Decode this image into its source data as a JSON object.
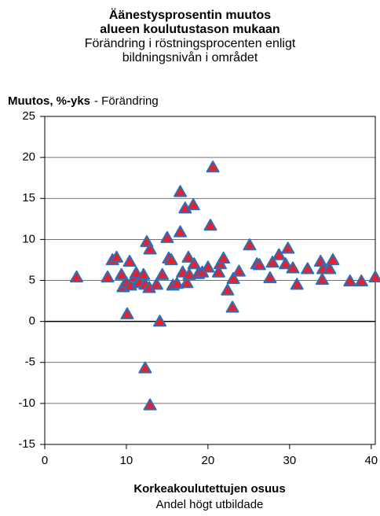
{
  "chart_data": {
    "type": "scatter",
    "title": [
      "Äänestysprosentin muutos",
      "alueen koulutustason mukaan"
    ],
    "subtitle": [
      "Förändring i röstningsprocenten enligt",
      "bildningsnivån i området"
    ],
    "ylabel": "Muutos, %-yks",
    "ylabel_translation": "- Förändring",
    "xlabel": "Korkeakoulutettujen osuus",
    "xlabel_translation": "Andel högt utbildade",
    "xlim": [
      0,
      40.5
    ],
    "xticks": [
      0,
      10,
      20,
      30,
      40
    ],
    "ylim": [
      -15,
      25
    ],
    "yticks": [
      -15,
      -10,
      -5,
      0,
      5,
      10,
      15,
      20,
      25
    ],
    "grid": true,
    "marker": "triangle",
    "color": "#e8202a",
    "edgecolor": "#2a6fb8",
    "x": [
      3.9,
      7.7,
      8.3,
      8.8,
      9.4,
      9.6,
      10.0,
      10.4,
      10.1,
      10.5,
      11.0,
      11.2,
      11.4,
      11.6,
      12.1,
      12.3,
      12.5,
      12.8,
      12.9,
      12.3,
      12.9,
      13.7,
      14.1,
      14.4,
      15.0,
      15.2,
      15.5,
      15.7,
      16.2,
      16.6,
      16.6,
      16.9,
      17.2,
      17.4,
      17.6,
      17.7,
      18.2,
      18.3,
      18.8,
      19.3,
      20.0,
      20.3,
      20.6,
      21.3,
      21.5,
      21.9,
      22.4,
      23.1,
      23.0,
      23.8,
      25.1,
      26.0,
      26.3,
      27.6,
      27.9,
      28.7,
      29.5,
      29.8,
      30.4,
      30.9,
      32.2,
      33.8,
      34.0,
      34.1,
      34.9,
      35.3,
      37.4,
      38.8,
      40.5
    ],
    "values": [
      5.4,
      5.4,
      7.5,
      7.8,
      5.7,
      4.2,
      4.7,
      7.3,
      0.9,
      4.4,
      5.4,
      5.9,
      4.7,
      4.8,
      5.7,
      4.5,
      9.7,
      4.1,
      8.8,
      -5.7,
      -10.2,
      4.5,
      0.0,
      5.7,
      10.2,
      7.7,
      7.5,
      4.4,
      4.6,
      10.9,
      15.8,
      6.0,
      13.8,
      4.7,
      7.8,
      5.7,
      14.2,
      7.0,
      5.8,
      6.0,
      6.6,
      11.7,
      18.8,
      6.0,
      7.0,
      7.7,
      3.8,
      5.2,
      1.7,
      6.1,
      9.3,
      7.0,
      6.9,
      5.3,
      7.2,
      8.1,
      7.0,
      8.9,
      6.5,
      4.5,
      6.4,
      7.3,
      5.1,
      6.4,
      6.4,
      7.5,
      4.9,
      4.9,
      5.4
    ]
  }
}
